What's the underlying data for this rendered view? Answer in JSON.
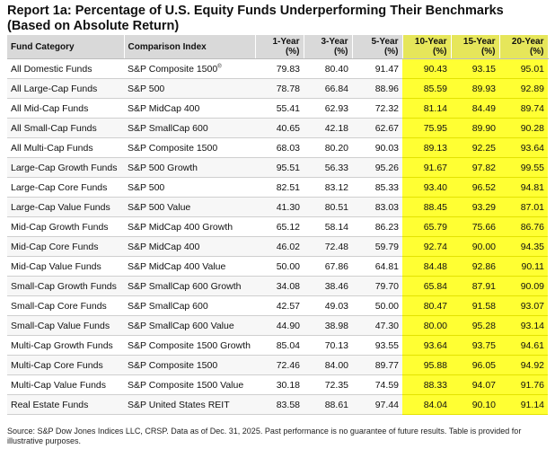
{
  "report": {
    "title_line1": "Report 1a: Percentage of U.S. Equity Funds Underperforming Their Benchmarks",
    "title_line2": "(Based on Absolute Return)"
  },
  "table": {
    "headers": {
      "category": "Fund Category",
      "index": "Comparison Index",
      "y1": "1-Year",
      "y3": "3-Year",
      "y5": "5-Year",
      "y10": "10-Year",
      "y15": "15-Year",
      "y20": "20-Year",
      "pct": "(%)"
    },
    "rows": [
      {
        "category": "All Domestic Funds",
        "index": "S&P Composite 1500",
        "sup": "®",
        "y1": "79.83",
        "y3": "80.40",
        "y5": "91.47",
        "y10": "90.43",
        "y15": "93.15",
        "y20": "95.01"
      },
      {
        "category": "All Large-Cap Funds",
        "index": "S&P 500",
        "y1": "78.78",
        "y3": "66.84",
        "y5": "88.96",
        "y10": "85.59",
        "y15": "89.93",
        "y20": "92.89"
      },
      {
        "category": "All Mid-Cap Funds",
        "index": "S&P MidCap 400",
        "y1": "55.41",
        "y3": "62.93",
        "y5": "72.32",
        "y10": "81.14",
        "y15": "84.49",
        "y20": "89.74"
      },
      {
        "category": "All Small-Cap Funds",
        "index": "S&P SmallCap 600",
        "y1": "40.65",
        "y3": "42.18",
        "y5": "62.67",
        "y10": "75.95",
        "y15": "89.90",
        "y20": "90.28"
      },
      {
        "category": "All Multi-Cap Funds",
        "index": "S&P Composite 1500",
        "y1": "68.03",
        "y3": "80.20",
        "y5": "90.03",
        "y10": "89.13",
        "y15": "92.25",
        "y20": "93.64"
      },
      {
        "category": "Large-Cap Growth Funds",
        "index": "S&P 500 Growth",
        "y1": "95.51",
        "y3": "56.33",
        "y5": "95.26",
        "y10": "91.67",
        "y15": "97.82",
        "y20": "99.55"
      },
      {
        "category": "Large-Cap Core Funds",
        "index": "S&P 500",
        "y1": "82.51",
        "y3": "83.12",
        "y5": "85.33",
        "y10": "93.40",
        "y15": "96.52",
        "y20": "94.81"
      },
      {
        "category": "Large-Cap Value Funds",
        "index": "S&P 500 Value",
        "y1": "41.30",
        "y3": "80.51",
        "y5": "83.03",
        "y10": "88.45",
        "y15": "93.29",
        "y20": "87.01"
      },
      {
        "category": "Mid-Cap Growth Funds",
        "index": "S&P MidCap 400 Growth",
        "y1": "65.12",
        "y3": "58.14",
        "y5": "86.23",
        "y10": "65.79",
        "y15": "75.66",
        "y20": "86.76"
      },
      {
        "category": "Mid-Cap Core Funds",
        "index": "S&P MidCap 400",
        "y1": "46.02",
        "y3": "72.48",
        "y5": "59.79",
        "y10": "92.74",
        "y15": "90.00",
        "y20": "94.35"
      },
      {
        "category": "Mid-Cap Value Funds",
        "index": "S&P MidCap 400 Value",
        "y1": "50.00",
        "y3": "67.86",
        "y5": "64.81",
        "y10": "84.48",
        "y15": "92.86",
        "y20": "90.11"
      },
      {
        "category": "Small-Cap Growth Funds",
        "index": "S&P SmallCap 600 Growth",
        "y1": "34.08",
        "y3": "38.46",
        "y5": "79.70",
        "y10": "65.84",
        "y15": "87.91",
        "y20": "90.09"
      },
      {
        "category": "Small-Cap Core Funds",
        "index": "S&P SmallCap 600",
        "y1": "42.57",
        "y3": "49.03",
        "y5": "50.00",
        "y10": "80.47",
        "y15": "91.58",
        "y20": "93.07"
      },
      {
        "category": "Small-Cap Value Funds",
        "index": "S&P SmallCap 600 Value",
        "y1": "44.90",
        "y3": "38.98",
        "y5": "47.30",
        "y10": "80.00",
        "y15": "95.28",
        "y20": "93.14"
      },
      {
        "category": "Multi-Cap Growth Funds",
        "index": "S&P Composite 1500 Growth",
        "y1": "85.04",
        "y3": "70.13",
        "y5": "93.55",
        "y10": "93.64",
        "y15": "93.75",
        "y20": "94.61"
      },
      {
        "category": "Multi-Cap Core Funds",
        "index": "S&P Composite 1500",
        "y1": "72.46",
        "y3": "84.00",
        "y5": "89.77",
        "y10": "95.88",
        "y15": "96.05",
        "y20": "94.92"
      },
      {
        "category": "Multi-Cap Value Funds",
        "index": "S&P Composite 1500 Value",
        "y1": "30.18",
        "y3": "72.35",
        "y5": "74.59",
        "y10": "88.33",
        "y15": "94.07",
        "y20": "91.76"
      },
      {
        "category": "Real Estate Funds",
        "index": "S&P United States REIT",
        "y1": "83.58",
        "y3": "88.61",
        "y5": "97.44",
        "y10": "84.04",
        "y15": "90.10",
        "y20": "91.14"
      }
    ]
  },
  "footer": {
    "source": "Source: S&P Dow Jones Indices LLC, CRSP.  Data as of Dec. 31, 2025.  Past performance is no guarantee of future results.  Table is provided for illustrative purposes."
  },
  "colors": {
    "highlight": "#ffff33",
    "header_bg": "#d9d9d9"
  }
}
